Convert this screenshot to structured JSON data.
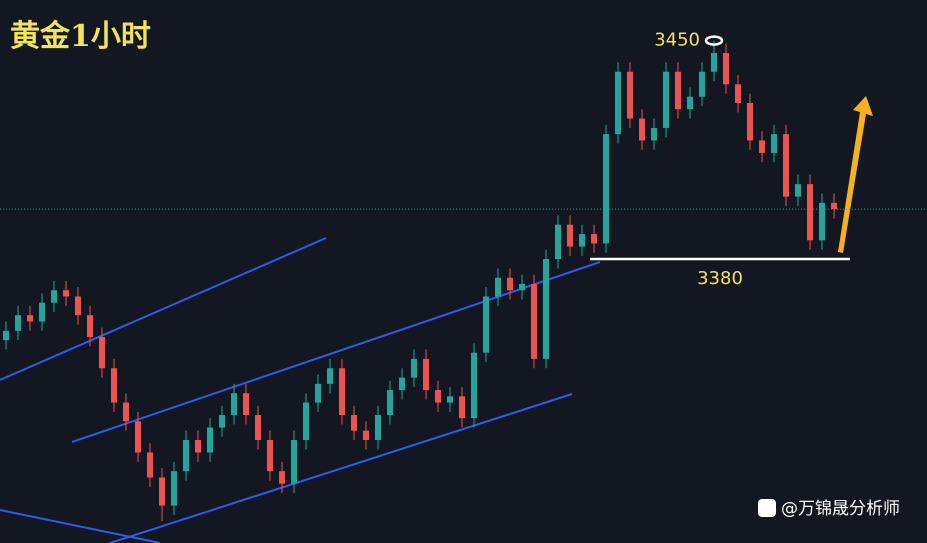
{
  "chart_data": {
    "type": "candlestick",
    "title": "黄金1小时",
    "ylim": [
      3289,
      3463
    ],
    "up_color": "#26a69a",
    "down_color": "#ef5350",
    "open": [
      3354,
      3357,
      3362,
      3360,
      3366,
      3370,
      3368,
      3362,
      3355,
      3345,
      3334,
      3328,
      3318,
      3310,
      3301,
      3312,
      3322,
      3318,
      3326,
      3330,
      3337,
      3330,
      3322,
      3312,
      3308,
      3322,
      3334,
      3340,
      3345,
      3330,
      3325,
      3322,
      3330,
      3338,
      3342,
      3348,
      3338,
      3334,
      3336,
      3329,
      3350,
      3368,
      3374,
      3370,
      3372,
      3348,
      3380,
      3391,
      3384,
      3388,
      3385,
      3420,
      3440,
      3425,
      3418,
      3422,
      3440,
      3428,
      3432,
      3440,
      3446,
      3436,
      3430,
      3418,
      3414,
      3420,
      3400,
      3404,
      3386,
      3398
    ],
    "high": [
      3360,
      3365,
      3365,
      3369,
      3373,
      3373,
      3371,
      3365,
      3358,
      3348,
      3337,
      3331,
      3321,
      3313,
      3315,
      3325,
      3325,
      3329,
      3333,
      3340,
      3340,
      3333,
      3325,
      3315,
      3325,
      3337,
      3343,
      3348,
      3348,
      3333,
      3328,
      3333,
      3341,
      3345,
      3351,
      3351,
      3341,
      3339,
      3339,
      3353,
      3371,
      3377,
      3377,
      3375,
      3375,
      3383,
      3394,
      3394,
      3391,
      3391,
      3423,
      3443,
      3443,
      3428,
      3425,
      3443,
      3443,
      3435,
      3443,
      3450,
      3449,
      3439,
      3433,
      3421,
      3423,
      3423,
      3407,
      3407,
      3401,
      3401
    ],
    "low": [
      3351,
      3354,
      3357,
      3357,
      3363,
      3365,
      3359,
      3352,
      3342,
      3331,
      3325,
      3315,
      3307,
      3296,
      3298,
      3309,
      3315,
      3315,
      3323,
      3327,
      3327,
      3319,
      3309,
      3305,
      3305,
      3319,
      3331,
      3337,
      3327,
      3322,
      3319,
      3319,
      3327,
      3335,
      3339,
      3335,
      3331,
      3331,
      3326,
      3326,
      3347,
      3365,
      3367,
      3367,
      3345,
      3345,
      3377,
      3381,
      3381,
      3382,
      3382,
      3417,
      3422,
      3415,
      3415,
      3419,
      3425,
      3425,
      3429,
      3437,
      3433,
      3427,
      3415,
      3411,
      3411,
      3397,
      3397,
      3383,
      3383,
      3393
    ],
    "close": [
      3357,
      3362,
      3360,
      3366,
      3370,
      3368,
      3362,
      3355,
      3345,
      3334,
      3328,
      3318,
      3310,
      3301,
      3312,
      3322,
      3318,
      3326,
      3330,
      3337,
      3330,
      3322,
      3312,
      3308,
      3322,
      3334,
      3340,
      3345,
      3330,
      3325,
      3322,
      3330,
      3338,
      3342,
      3348,
      3338,
      3334,
      3336,
      3329,
      3350,
      3368,
      3374,
      3370,
      3372,
      3348,
      3380,
      3391,
      3384,
      3388,
      3385,
      3420,
      3440,
      3425,
      3418,
      3422,
      3440,
      3428,
      3432,
      3440,
      3446,
      3436,
      3430,
      3418,
      3414,
      3420,
      3400,
      3404,
      3386,
      3398,
      3396
    ],
    "peak_label": 3450,
    "support_label": 3380,
    "watermark": "@万锦晟分析师"
  }
}
